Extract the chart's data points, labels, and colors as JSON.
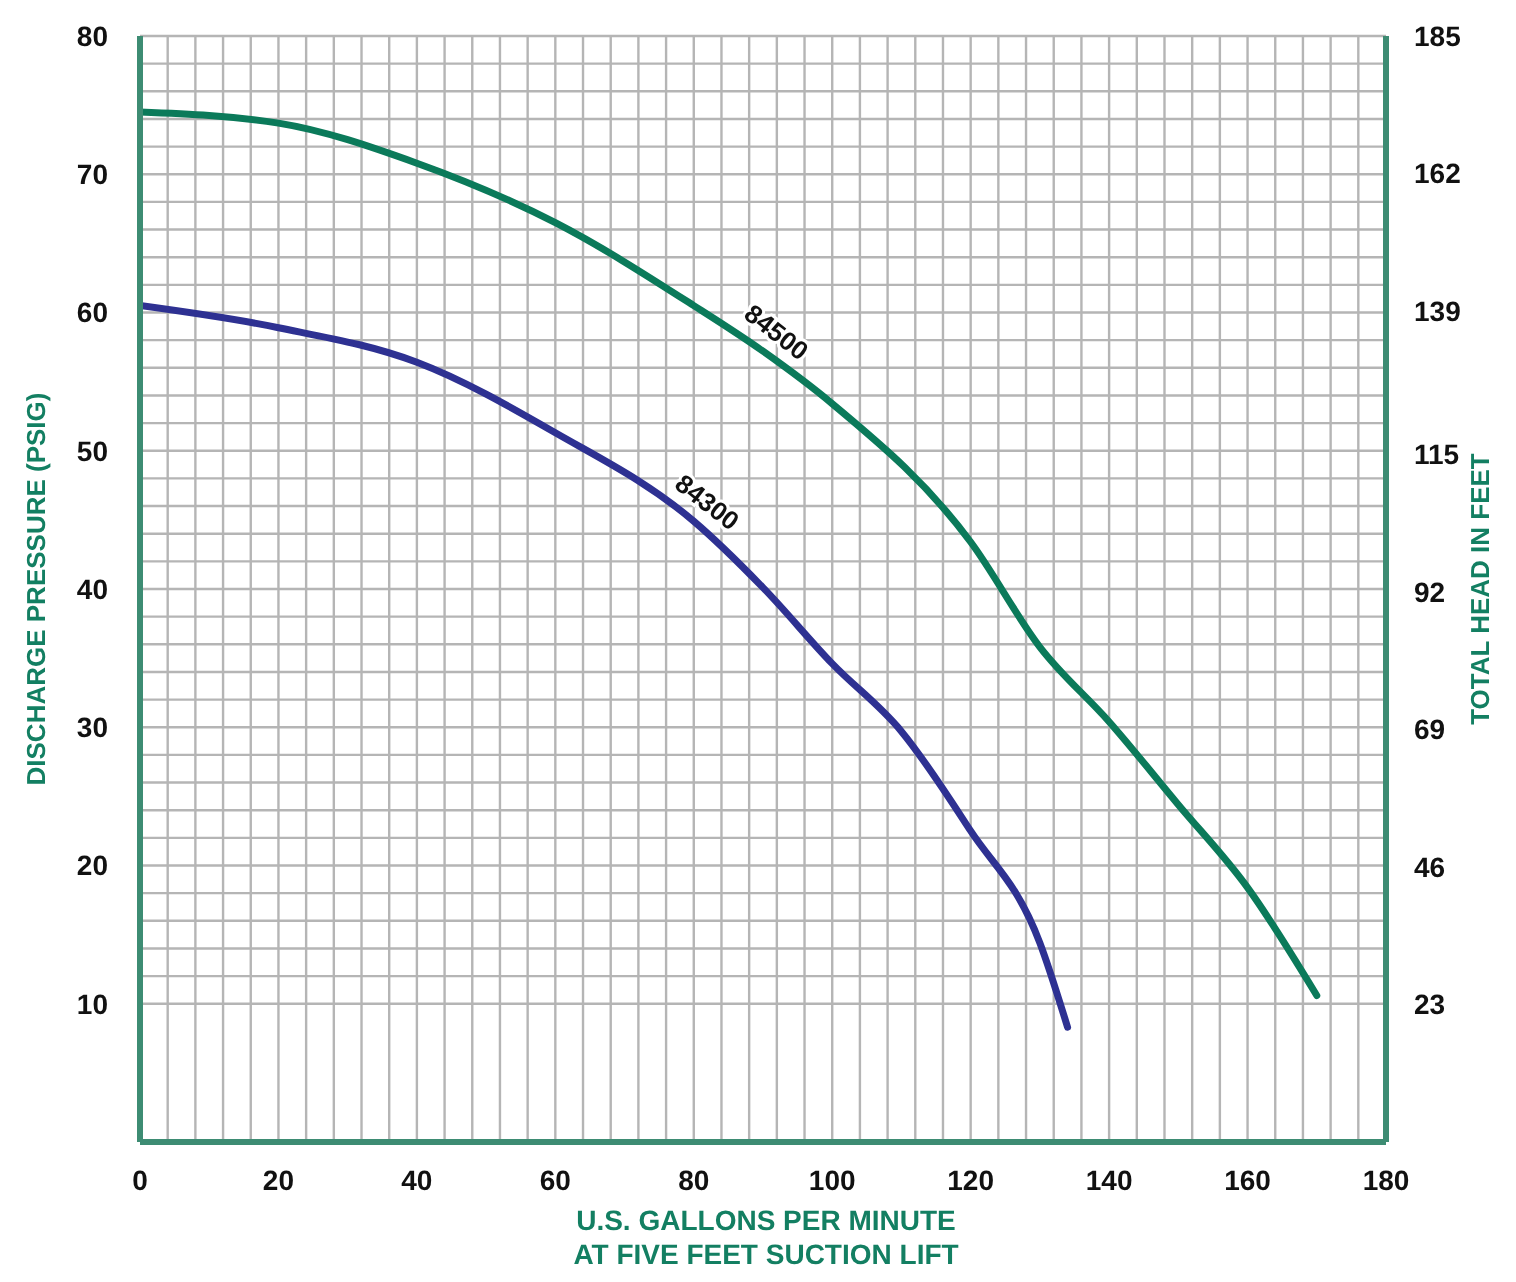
{
  "chart_data": {
    "type": "line",
    "xlabel": "U.S. GALLONS PER MINUTE\nAT FIVE FEET SUCTION LIFT",
    "ylabel": "DISCHARGE PRESSURE (PSIG)",
    "y2label": "TOTAL HEAD IN FEET",
    "xlim": [
      0,
      180
    ],
    "xticks": [
      0,
      20,
      40,
      60,
      80,
      100,
      120,
      140,
      160,
      180
    ],
    "ylim": [
      0,
      80
    ],
    "yticks": [
      10,
      20,
      30,
      40,
      50,
      60,
      70,
      80
    ],
    "y2lim": [
      0,
      185
    ],
    "y2ticks": [
      23,
      46,
      69,
      92,
      115,
      139,
      162,
      185
    ],
    "grid": true,
    "marker": "none",
    "line_style": "solid",
    "series": [
      {
        "name": "84300",
        "color": "#2e3192",
        "x": [
          0,
          20,
          40,
          60,
          80,
          90,
          100,
          110,
          120,
          130,
          134
        ],
        "values": [
          60.5,
          58.9,
          56.4,
          51.3,
          44.9,
          40.1,
          34.6,
          29.7,
          22.5,
          14.4,
          8.3
        ]
      },
      {
        "name": "84500",
        "color": "#0b7a5a",
        "x": [
          0,
          20,
          40,
          60,
          80,
          90,
          100,
          120,
          130,
          140,
          150,
          160,
          170
        ],
        "values": [
          74.5,
          73.7,
          70.8,
          66.5,
          60.5,
          57.2,
          53.4,
          43.4,
          35.8,
          30.4,
          24.4,
          18.4,
          10.6
        ]
      }
    ]
  }
}
